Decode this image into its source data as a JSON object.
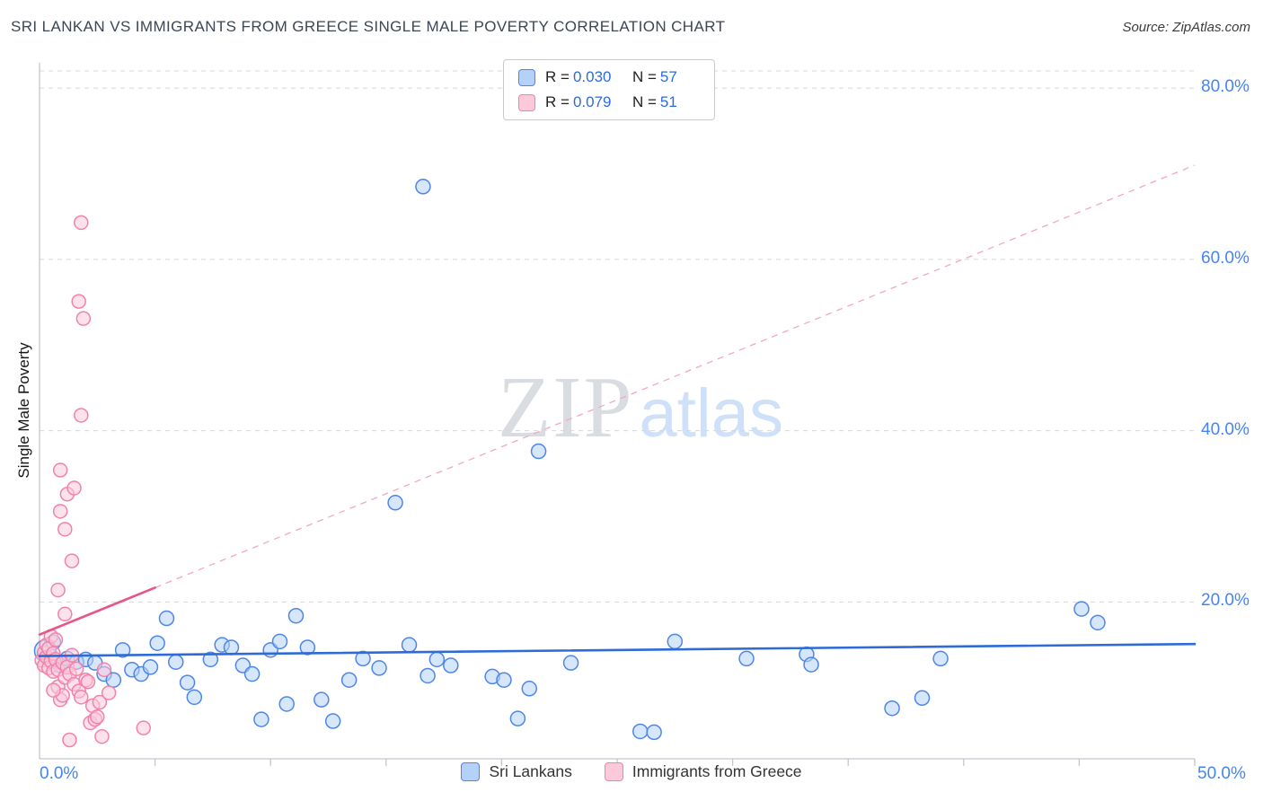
{
  "header": {
    "title": "SRI LANKAN VS IMMIGRANTS FROM GREECE SINGLE MALE POVERTY CORRELATION CHART",
    "source": "Source: ZipAtlas.com"
  },
  "legend_box": {
    "rows": [
      {
        "series": "Sri Lankans",
        "r_label": "R =",
        "r_value": "0.030",
        "n_label": "N =",
        "n_value": "57"
      },
      {
        "series": "Immigrants from Greece",
        "r_label": "R =",
        "r_value": "0.079",
        "n_label": "N =",
        "n_value": "51"
      }
    ]
  },
  "watermark": {
    "zip": "ZIP",
    "atlas": "atlas"
  },
  "chart_data": {
    "type": "scatter",
    "title": "SRI LANKAN VS IMMIGRANTS FROM GREECE SINGLE MALE POVERTY CORRELATION CHART",
    "ylabel": "Single Male Poverty",
    "xlabel": "",
    "x_units": "percent",
    "y_units": "percent",
    "xlim": [
      0,
      50
    ],
    "ylim": [
      1.7,
      82
    ],
    "grid": "horizontal-dashed",
    "grid_color": "#d8d8d8",
    "axis_color": "#c2c7cd",
    "x_ticks": [
      {
        "v": 0,
        "label": "0.0%"
      },
      {
        "v": 50,
        "label": "50.0%"
      }
    ],
    "x_minor_tick_step": 5,
    "y_gridlines": [
      20,
      40,
      60,
      80
    ],
    "y_tick_labels": [
      {
        "v": 80,
        "label": "80.0%"
      },
      {
        "v": 60,
        "label": "60.0%"
      },
      {
        "v": 40,
        "label": "40.0%"
      },
      {
        "v": 20,
        "label": "20.0%"
      }
    ],
    "legend_position": "bottom-center",
    "series": [
      {
        "id": "sri-lankans",
        "name": "Sri Lankans",
        "r": 0.03,
        "n": 57,
        "point_color": "#4e86e8",
        "point_fill": "#b4d1f8",
        "trend_color": "#2e6bd6",
        "point_radius": 8,
        "trend": {
          "x": [
            0,
            50
          ],
          "y": [
            13.7,
            15.1
          ],
          "dash_from_x": 50
        },
        "points": [
          [
            0.25,
            14.3,
            12
          ],
          [
            0.6,
            15.3
          ],
          [
            0.9,
            12.6
          ],
          [
            1.2,
            13.4
          ],
          [
            1.6,
            13.0
          ],
          [
            2.0,
            13.3
          ],
          [
            2.4,
            12.9
          ],
          [
            2.8,
            11.6
          ],
          [
            3.2,
            10.9
          ],
          [
            3.6,
            14.4
          ],
          [
            4.0,
            12.1
          ],
          [
            4.4,
            11.6
          ],
          [
            4.8,
            12.4
          ],
          [
            5.1,
            15.2
          ],
          [
            5.5,
            18.1
          ],
          [
            5.9,
            13.0
          ],
          [
            6.4,
            10.6
          ],
          [
            6.7,
            8.9
          ],
          [
            7.4,
            13.3
          ],
          [
            7.9,
            15.0
          ],
          [
            8.3,
            14.7
          ],
          [
            8.8,
            12.6
          ],
          [
            9.2,
            11.6
          ],
          [
            9.6,
            6.3
          ],
          [
            10.0,
            14.4
          ],
          [
            10.4,
            15.4
          ],
          [
            10.7,
            8.1
          ],
          [
            11.1,
            18.4
          ],
          [
            11.6,
            14.7
          ],
          [
            12.2,
            8.6
          ],
          [
            12.7,
            6.1
          ],
          [
            13.4,
            10.9
          ],
          [
            14.0,
            13.4
          ],
          [
            14.7,
            12.3
          ],
          [
            15.4,
            31.6
          ],
          [
            16.0,
            15.0
          ],
          [
            16.6,
            68.5
          ],
          [
            16.8,
            11.4
          ],
          [
            17.2,
            13.3
          ],
          [
            17.8,
            12.6
          ],
          [
            19.6,
            11.3
          ],
          [
            20.1,
            10.9
          ],
          [
            20.7,
            6.4
          ],
          [
            21.2,
            9.9
          ],
          [
            21.6,
            37.6
          ],
          [
            23.0,
            12.9
          ],
          [
            26.0,
            4.9
          ],
          [
            26.6,
            4.8
          ],
          [
            27.5,
            15.4
          ],
          [
            30.6,
            13.4
          ],
          [
            33.2,
            13.9
          ],
          [
            33.4,
            12.7
          ],
          [
            36.9,
            7.6
          ],
          [
            38.2,
            8.8
          ],
          [
            39.0,
            13.4
          ],
          [
            45.1,
            19.2
          ],
          [
            45.8,
            17.6
          ]
        ]
      },
      {
        "id": "immigrants-from-greece",
        "name": "Immigrants from Greece",
        "r": 0.079,
        "n": 51,
        "point_color": "#f183aa",
        "point_fill": "#fcc9da",
        "trend_color": "#e8538a",
        "trend_dash_color": "#f3a8c0",
        "point_radius": 7.5,
        "trend": {
          "x": [
            0,
            50
          ],
          "y": [
            16.2,
            71.0
          ],
          "dash_from_x": 5
        },
        "points": [
          [
            1.8,
            64.3
          ],
          [
            1.7,
            55.1
          ],
          [
            1.9,
            53.1
          ],
          [
            1.8,
            41.8
          ],
          [
            0.9,
            35.4
          ],
          [
            1.2,
            32.6
          ],
          [
            1.5,
            33.3
          ],
          [
            0.9,
            30.6
          ],
          [
            1.1,
            28.5
          ],
          [
            1.4,
            24.8
          ],
          [
            0.8,
            21.4
          ],
          [
            1.1,
            18.6
          ],
          [
            0.1,
            13.2
          ],
          [
            0.2,
            14.1
          ],
          [
            0.2,
            12.6
          ],
          [
            0.3,
            13.6
          ],
          [
            0.3,
            15.0
          ],
          [
            0.4,
            12.3
          ],
          [
            0.4,
            14.6
          ],
          [
            0.5,
            13.1
          ],
          [
            0.5,
            16.0
          ],
          [
            0.6,
            11.9
          ],
          [
            0.6,
            14.0
          ],
          [
            0.7,
            13.3
          ],
          [
            0.7,
            15.6
          ],
          [
            0.8,
            12.1
          ],
          [
            0.8,
            10.1
          ],
          [
            0.9,
            8.6
          ],
          [
            1.0,
            9.1
          ],
          [
            1.0,
            12.9
          ],
          [
            1.1,
            11.2
          ],
          [
            1.2,
            12.4
          ],
          [
            1.3,
            11.6
          ],
          [
            1.3,
            3.9
          ],
          [
            1.4,
            13.8
          ],
          [
            1.5,
            10.4
          ],
          [
            1.6,
            12.2
          ],
          [
            1.7,
            9.6
          ],
          [
            1.8,
            8.9
          ],
          [
            2.0,
            10.9
          ],
          [
            2.1,
            10.7
          ],
          [
            2.2,
            5.9
          ],
          [
            2.3,
            7.9
          ],
          [
            2.4,
            6.3
          ],
          [
            2.5,
            6.6
          ],
          [
            2.6,
            8.3
          ],
          [
            2.7,
            4.3
          ],
          [
            2.8,
            12.1
          ],
          [
            3.0,
            9.4
          ],
          [
            4.5,
            5.3
          ],
          [
            0.6,
            9.7
          ]
        ]
      }
    ]
  }
}
